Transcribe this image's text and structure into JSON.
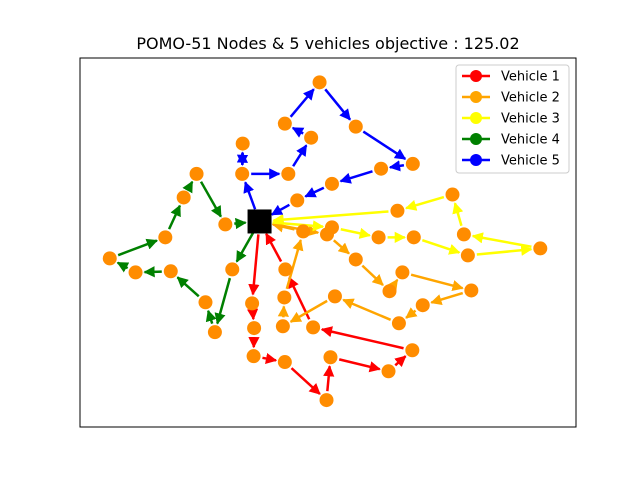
{
  "chart_data": {
    "type": "scatter",
    "title": "POMO-51 Nodes & 5 vehicles objective : 125.02",
    "xlabel": "",
    "ylabel": "",
    "xlim": [
      0.0,
      1.0
    ],
    "ylim": [
      0.0,
      1.0
    ],
    "grid": false,
    "axis_ticks": false,
    "legend_position": "top-right",
    "depot": {
      "x": 0.362,
      "y": 0.557,
      "marker": "square",
      "color": "#000000"
    },
    "node_color": "#ff8c00",
    "customers": [
      {
        "x": 0.483,
        "y": 0.934
      },
      {
        "x": 0.413,
        "y": 0.822
      },
      {
        "x": 0.466,
        "y": 0.784
      },
      {
        "x": 0.556,
        "y": 0.814
      },
      {
        "x": 0.671,
        "y": 0.713
      },
      {
        "x": 0.607,
        "y": 0.7
      },
      {
        "x": 0.508,
        "y": 0.659
      },
      {
        "x": 0.438,
        "y": 0.614
      },
      {
        "x": 0.42,
        "y": 0.686
      },
      {
        "x": 0.328,
        "y": 0.768
      },
      {
        "x": 0.327,
        "y": 0.686
      },
      {
        "x": 0.235,
        "y": 0.686
      },
      {
        "x": 0.209,
        "y": 0.622
      },
      {
        "x": 0.293,
        "y": 0.549
      },
      {
        "x": 0.172,
        "y": 0.514
      },
      {
        "x": 0.06,
        "y": 0.457
      },
      {
        "x": 0.112,
        "y": 0.419
      },
      {
        "x": 0.183,
        "y": 0.422
      },
      {
        "x": 0.253,
        "y": 0.338
      },
      {
        "x": 0.272,
        "y": 0.257
      },
      {
        "x": 0.307,
        "y": 0.427
      },
      {
        "x": 0.347,
        "y": 0.335
      },
      {
        "x": 0.351,
        "y": 0.268
      },
      {
        "x": 0.35,
        "y": 0.192
      },
      {
        "x": 0.413,
        "y": 0.176
      },
      {
        "x": 0.497,
        "y": 0.073
      },
      {
        "x": 0.505,
        "y": 0.189
      },
      {
        "x": 0.622,
        "y": 0.151
      },
      {
        "x": 0.67,
        "y": 0.208
      },
      {
        "x": 0.47,
        "y": 0.27
      },
      {
        "x": 0.409,
        "y": 0.273
      },
      {
        "x": 0.412,
        "y": 0.351
      },
      {
        "x": 0.414,
        "y": 0.427
      },
      {
        "x": 0.45,
        "y": 0.53
      },
      {
        "x": 0.498,
        "y": 0.522
      },
      {
        "x": 0.508,
        "y": 0.541
      },
      {
        "x": 0.556,
        "y": 0.454
      },
      {
        "x": 0.65,
        "y": 0.419
      },
      {
        "x": 0.624,
        "y": 0.368
      },
      {
        "x": 0.514,
        "y": 0.354
      },
      {
        "x": 0.643,
        "y": 0.281
      },
      {
        "x": 0.691,
        "y": 0.33
      },
      {
        "x": 0.789,
        "y": 0.37
      },
      {
        "x": 0.602,
        "y": 0.514
      },
      {
        "x": 0.673,
        "y": 0.514
      },
      {
        "x": 0.782,
        "y": 0.465
      },
      {
        "x": 0.928,
        "y": 0.484
      },
      {
        "x": 0.774,
        "y": 0.522
      },
      {
        "x": 0.751,
        "y": 0.63
      },
      {
        "x": 0.64,
        "y": 0.586
      }
    ],
    "series": [
      {
        "name": "Vehicle 1",
        "color": "#ff0000",
        "route": [
          {
            "x": 0.362,
            "y": 0.557
          },
          {
            "x": 0.347,
            "y": 0.335
          },
          {
            "x": 0.351,
            "y": 0.268
          },
          {
            "x": 0.35,
            "y": 0.192
          },
          {
            "x": 0.413,
            "y": 0.176
          },
          {
            "x": 0.497,
            "y": 0.073
          },
          {
            "x": 0.505,
            "y": 0.189
          },
          {
            "x": 0.622,
            "y": 0.151
          },
          {
            "x": 0.67,
            "y": 0.208
          },
          {
            "x": 0.47,
            "y": 0.27
          },
          {
            "x": 0.414,
            "y": 0.427
          },
          {
            "x": 0.362,
            "y": 0.557
          }
        ]
      },
      {
        "name": "Vehicle 2",
        "color": "#ffa500",
        "route": [
          {
            "x": 0.362,
            "y": 0.557
          },
          {
            "x": 0.498,
            "y": 0.522
          },
          {
            "x": 0.556,
            "y": 0.454
          },
          {
            "x": 0.624,
            "y": 0.368
          },
          {
            "x": 0.65,
            "y": 0.419
          },
          {
            "x": 0.789,
            "y": 0.37
          },
          {
            "x": 0.691,
            "y": 0.33
          },
          {
            "x": 0.643,
            "y": 0.281
          },
          {
            "x": 0.514,
            "y": 0.354
          },
          {
            "x": 0.409,
            "y": 0.273
          },
          {
            "x": 0.412,
            "y": 0.351
          },
          {
            "x": 0.45,
            "y": 0.53
          },
          {
            "x": 0.362,
            "y": 0.557
          }
        ]
      },
      {
        "name": "Vehicle 3",
        "color": "#ffff00",
        "route": [
          {
            "x": 0.362,
            "y": 0.557
          },
          {
            "x": 0.508,
            "y": 0.541
          },
          {
            "x": 0.602,
            "y": 0.514
          },
          {
            "x": 0.673,
            "y": 0.514
          },
          {
            "x": 0.782,
            "y": 0.465
          },
          {
            "x": 0.928,
            "y": 0.484
          },
          {
            "x": 0.774,
            "y": 0.522
          },
          {
            "x": 0.751,
            "y": 0.63
          },
          {
            "x": 0.64,
            "y": 0.586
          },
          {
            "x": 0.362,
            "y": 0.557
          }
        ]
      },
      {
        "name": "Vehicle 4",
        "color": "#008000",
        "route": [
          {
            "x": 0.362,
            "y": 0.557
          },
          {
            "x": 0.307,
            "y": 0.427
          },
          {
            "x": 0.272,
            "y": 0.257
          },
          {
            "x": 0.253,
            "y": 0.338
          },
          {
            "x": 0.183,
            "y": 0.422
          },
          {
            "x": 0.112,
            "y": 0.419
          },
          {
            "x": 0.06,
            "y": 0.457
          },
          {
            "x": 0.172,
            "y": 0.514
          },
          {
            "x": 0.209,
            "y": 0.622
          },
          {
            "x": 0.235,
            "y": 0.686
          },
          {
            "x": 0.293,
            "y": 0.549
          },
          {
            "x": 0.362,
            "y": 0.557
          }
        ]
      },
      {
        "name": "Vehicle 5",
        "color": "#0000ff",
        "route": [
          {
            "x": 0.362,
            "y": 0.557
          },
          {
            "x": 0.327,
            "y": 0.686
          },
          {
            "x": 0.328,
            "y": 0.768
          },
          {
            "x": 0.327,
            "y": 0.686
          },
          {
            "x": 0.42,
            "y": 0.686
          },
          {
            "x": 0.466,
            "y": 0.784
          },
          {
            "x": 0.413,
            "y": 0.822
          },
          {
            "x": 0.483,
            "y": 0.934
          },
          {
            "x": 0.556,
            "y": 0.814
          },
          {
            "x": 0.671,
            "y": 0.713
          },
          {
            "x": 0.607,
            "y": 0.7
          },
          {
            "x": 0.508,
            "y": 0.659
          },
          {
            "x": 0.438,
            "y": 0.614
          },
          {
            "x": 0.362,
            "y": 0.557
          }
        ]
      }
    ]
  }
}
